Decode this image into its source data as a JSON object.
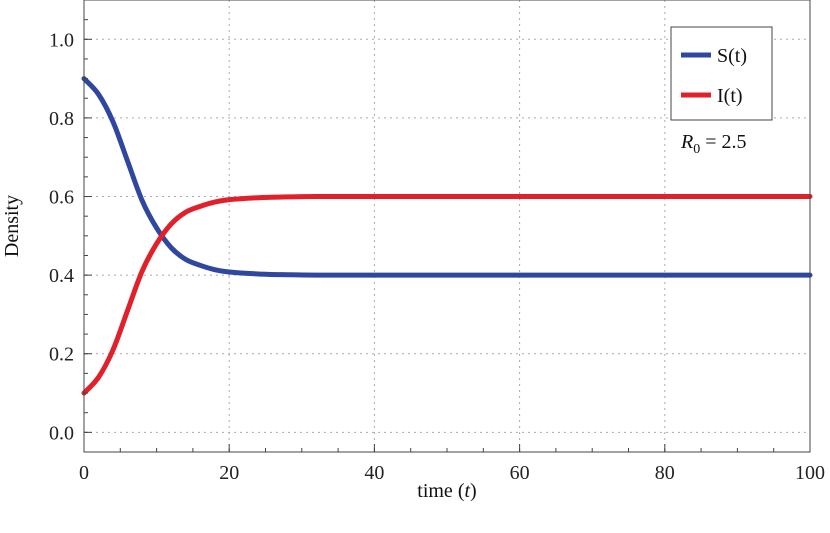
{
  "chart_data": {
    "type": "line",
    "title": "",
    "xlabel": "time",
    "xlabel_var": "t",
    "ylabel": "Density",
    "xlim": [
      0,
      100
    ],
    "ylim": [
      -0.05,
      1.1
    ],
    "xticks": [
      0,
      20,
      40,
      60,
      80,
      100
    ],
    "yticks": [
      0.0,
      0.2,
      0.4,
      0.6,
      0.8,
      1.0
    ],
    "yticks_text": [
      "0.0",
      "0.2",
      "0.4",
      "0.6",
      "0.8",
      "1.0"
    ],
    "grid": true,
    "legend": "top-right",
    "annotation": {
      "symbol": "R",
      "subscript": "0",
      "text": " = 2.5",
      "value": 2.5
    },
    "series": [
      {
        "name": "S(t)",
        "color": "#3047a0",
        "x": [
          0,
          2,
          4,
          6,
          8,
          10,
          12,
          14,
          16,
          18,
          20,
          24,
          28,
          32,
          40,
          60,
          80,
          100
        ],
        "y": [
          0.9,
          0.86,
          0.79,
          0.69,
          0.59,
          0.52,
          0.47,
          0.44,
          0.425,
          0.414,
          0.408,
          0.403,
          0.401,
          0.4,
          0.4,
          0.4,
          0.4,
          0.4
        ]
      },
      {
        "name": "I(t)",
        "color": "#e0202a",
        "x": [
          0,
          2,
          4,
          6,
          8,
          10,
          12,
          14,
          16,
          18,
          20,
          24,
          28,
          32,
          40,
          60,
          80,
          100
        ],
        "y": [
          0.1,
          0.14,
          0.21,
          0.31,
          0.41,
          0.48,
          0.53,
          0.56,
          0.575,
          0.586,
          0.592,
          0.597,
          0.599,
          0.6,
          0.6,
          0.6,
          0.6,
          0.6
        ]
      }
    ]
  }
}
